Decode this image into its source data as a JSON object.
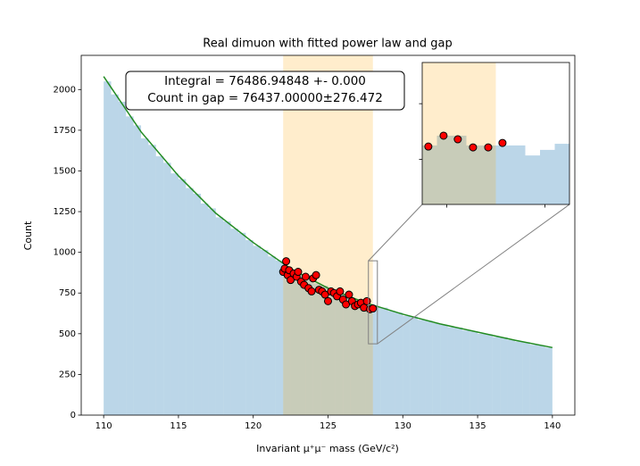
{
  "chart_data": [
    {
      "type": "histogram",
      "title": "Real dimuon with fitted power law and gap",
      "xlabel": "Invariant μ⁺μ⁻ mass (GeV/c²)",
      "ylabel": "Count",
      "bins": [
        110,
        110.5,
        111,
        111.5,
        112,
        112.5,
        113,
        113.5,
        114,
        114.5,
        115,
        115.5,
        116,
        116.5,
        117,
        117.5,
        118,
        118.5,
        119,
        119.5,
        120,
        120.5,
        121,
        121.5,
        122,
        122.5,
        123,
        123.5,
        124,
        124.5,
        125,
        125.5,
        126,
        126.5,
        127,
        127.5,
        128,
        128.5,
        129,
        129.5,
        130,
        130.5,
        131,
        131.5,
        132,
        132.5,
        133,
        133.5,
        134,
        134.5,
        135,
        135.5,
        136,
        136.5,
        137,
        137.5,
        138,
        138.5,
        139,
        139.5,
        140
      ],
      "values": [
        2050,
        1970,
        1925,
        1835,
        1780,
        1700,
        1660,
        1590,
        1550,
        1485,
        1450,
        1395,
        1360,
        1300,
        1270,
        1215,
        1190,
        1145,
        1120,
        1075,
        1040,
        1015,
        975,
        950,
        910,
        885,
        860,
        845,
        810,
        795,
        770,
        750,
        740,
        715,
        700,
        680,
        665,
        660,
        640,
        630,
        610,
        605,
        585,
        580,
        565,
        555,
        540,
        538,
        520,
        515,
        500,
        497,
        480,
        478,
        462,
        452,
        448,
        432,
        430,
        415
      ],
      "color": "#1f77b4",
      "gap": [
        122,
        128
      ],
      "gap_color": "orange",
      "fit": {
        "color": "#228b22",
        "x": [
          110,
          112.5,
          115,
          117.5,
          120,
          122.5,
          125,
          127.5,
          130,
          132.5,
          135,
          137.5,
          140
        ],
        "values": [
          2080,
          1740,
          1470,
          1240,
          1060,
          900,
          780,
          690,
          620,
          560,
          510,
          460,
          415
        ]
      },
      "points": {
        "color": "red",
        "x": [
          122.0,
          122.1,
          122.2,
          122.3,
          122.4,
          122.5,
          122.7,
          122.9,
          123.0,
          123.2,
          123.4,
          123.5,
          123.7,
          123.9,
          124.0,
          124.2,
          124.4,
          124.6,
          124.8,
          125.0,
          125.2,
          125.4,
          125.6,
          125.8,
          126.0,
          126.2,
          126.4,
          126.6,
          126.8,
          127.0,
          127.2,
          127.4,
          127.6,
          127.8,
          128.0
        ],
        "values": [
          880,
          900,
          945,
          860,
          890,
          830,
          870,
          850,
          880,
          820,
          800,
          850,
          780,
          760,
          840,
          860,
          770,
          760,
          740,
          700,
          760,
          750,
          730,
          760,
          710,
          680,
          740,
          700,
          670,
          680,
          690,
          660,
          700,
          650,
          655
        ]
      },
      "annotations": [
        "Integral = 76486.94848 +- 0.000",
        "Count in gap = 76437.00000±276.472"
      ],
      "xlim": [
        108.5,
        141.5
      ],
      "ylim": [
        0,
        2210
      ],
      "xticks": [
        110,
        115,
        120,
        125,
        130,
        135,
        140
      ],
      "yticks": [
        0,
        250,
        500,
        750,
        1000,
        1250,
        1500,
        1750,
        2000
      ]
    },
    {
      "type": "histogram",
      "bins": [
        127.7,
        127.76,
        127.88,
        128.0,
        128.12,
        128.18,
        128.24,
        128.3
      ],
      "values": [
        650,
        685,
        650,
        650,
        614,
        634,
        656
      ],
      "color": "#1f77b4",
      "gap": [
        127.7,
        128.0
      ],
      "gap_color": "orange",
      "points": {
        "color": "red",
        "x": [
          127.725,
          127.787,
          127.845,
          127.907,
          127.969,
          128.027
        ],
        "values": [
          646,
          685,
          672,
          643,
          643,
          659
        ]
      },
      "xlim": [
        127.7,
        128.3
      ],
      "ylim": [
        438,
        948
      ],
      "xticks": [
        127.8,
        128.2
      ],
      "yticks": [
        600,
        800
      ]
    }
  ]
}
